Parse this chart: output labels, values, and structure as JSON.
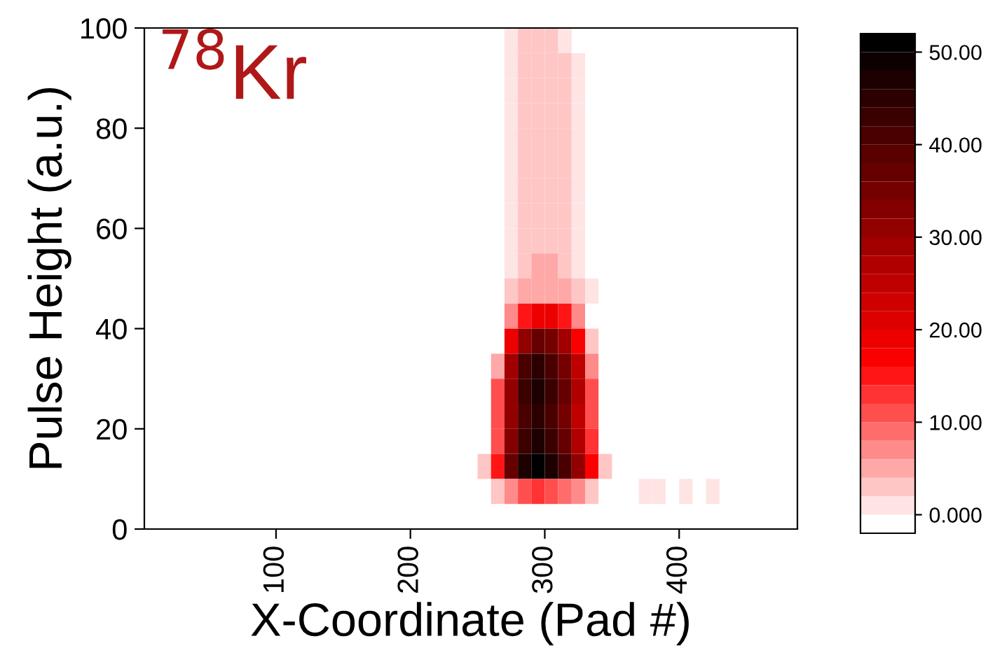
{
  "chart_data": {
    "type": "heatmap",
    "xlabel": "X-Coordinate (Pad #)",
    "ylabel": "Pulse Height (a.u.)",
    "annotations": [
      "$^{78}$Kr"
    ],
    "x": [
      255,
      265,
      275,
      285,
      295,
      305,
      315,
      325,
      335,
      345,
      375,
      385,
      395,
      405,
      415,
      425,
      435
    ],
    "y": [
      97.5,
      92.5,
      87.5,
      82.5,
      77.5,
      72.5,
      67.5,
      62.5,
      57.5,
      52.5,
      47.5,
      42.5,
      37.5,
      32.5,
      27.5,
      22.5,
      17.5,
      12.5,
      7.5
    ],
    "cells": [
      [
        null,
        null,
        1,
        2,
        2,
        2,
        1,
        null,
        null,
        null,
        null,
        null,
        null,
        null,
        null,
        null,
        null
      ],
      [
        null,
        null,
        1,
        2,
        3,
        3,
        2,
        1,
        null,
        null,
        null,
        null,
        null,
        null,
        null,
        null,
        null
      ],
      [
        null,
        null,
        1,
        2,
        3,
        3,
        2,
        1,
        null,
        null,
        null,
        null,
        null,
        null,
        null,
        null,
        null
      ],
      [
        null,
        null,
        1,
        2,
        3,
        3,
        2,
        1,
        null,
        null,
        null,
        null,
        null,
        null,
        null,
        null,
        null
      ],
      [
        null,
        null,
        1,
        2,
        3,
        3,
        2,
        1,
        null,
        null,
        null,
        null,
        null,
        null,
        null,
        null,
        null
      ],
      [
        null,
        null,
        1,
        2,
        3,
        3,
        2,
        1,
        null,
        null,
        null,
        null,
        null,
        null,
        null,
        null,
        null
      ],
      [
        null,
        null,
        1,
        2,
        3,
        3,
        2,
        1,
        null,
        null,
        null,
        null,
        null,
        null,
        null,
        null,
        null
      ],
      [
        null,
        null,
        1,
        2,
        3,
        3,
        2,
        1,
        null,
        null,
        null,
        null,
        null,
        null,
        null,
        null,
        null
      ],
      [
        null,
        null,
        1,
        3,
        3,
        3,
        2,
        1,
        null,
        null,
        null,
        null,
        null,
        null,
        null,
        null,
        null
      ],
      [
        null,
        null,
        1,
        3,
        4,
        4,
        3,
        1,
        null,
        null,
        null,
        null,
        null,
        null,
        null,
        null,
        null
      ],
      [
        null,
        null,
        2,
        4,
        5,
        5,
        4,
        2,
        1,
        null,
        null,
        null,
        null,
        null,
        null,
        null,
        null
      ],
      [
        null,
        null,
        6,
        14,
        18,
        18,
        14,
        6,
        null,
        null,
        null,
        null,
        null,
        null,
        null,
        null,
        null
      ],
      [
        null,
        null,
        18,
        30,
        36,
        34,
        28,
        16,
        2,
        null,
        null,
        null,
        null,
        null,
        null,
        null,
        null
      ],
      [
        null,
        4,
        28,
        40,
        44,
        40,
        34,
        24,
        6,
        null,
        null,
        null,
        null,
        null,
        null,
        null,
        null
      ],
      [
        null,
        10,
        30,
        42,
        46,
        42,
        36,
        26,
        10,
        null,
        null,
        null,
        null,
        null,
        null,
        null,
        null
      ],
      [
        null,
        10,
        30,
        40,
        44,
        40,
        34,
        24,
        10,
        null,
        null,
        null,
        null,
        null,
        null,
        null,
        null
      ],
      [
        null,
        10,
        32,
        42,
        46,
        42,
        36,
        26,
        12,
        null,
        null,
        null,
        null,
        null,
        null,
        null,
        null
      ],
      [
        2,
        14,
        36,
        46,
        50,
        46,
        40,
        30,
        16,
        2,
        null,
        null,
        null,
        null,
        null,
        null,
        null
      ],
      [
        null,
        2,
        6,
        10,
        12,
        10,
        8,
        6,
        2,
        null,
        1,
        1,
        null,
        1,
        null,
        1,
        null
      ]
    ],
    "xlim": [
      2,
      488
    ],
    "xticks": [
      100,
      200,
      300,
      400
    ],
    "ylim": [
      0,
      100
    ],
    "yticks": [
      0,
      20,
      40,
      60,
      80,
      100
    ],
    "clim": [
      -2,
      52
    ],
    "cticks": [
      {
        "value": 0,
        "label": "0.000"
      },
      {
        "value": 10,
        "label": "10.00"
      },
      {
        "value": 20,
        "label": "20.00"
      },
      {
        "value": 30,
        "label": "30.00"
      },
      {
        "value": 40,
        "label": "40.00"
      },
      {
        "value": 50,
        "label": "50.00"
      }
    ]
  }
}
